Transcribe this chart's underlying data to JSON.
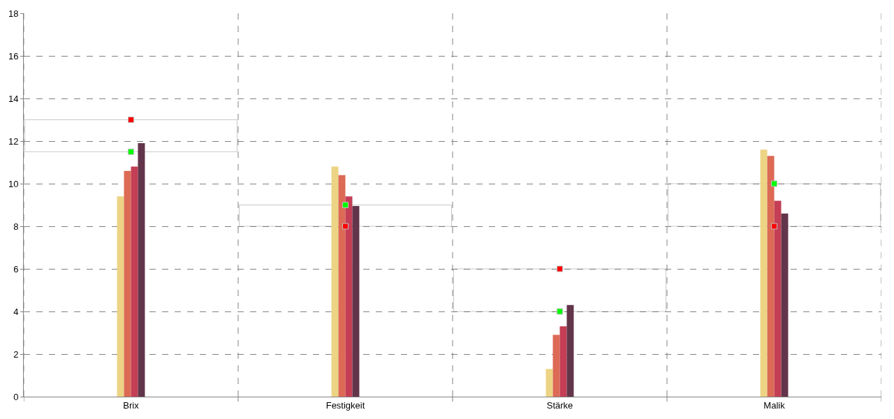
{
  "chart_data": {
    "type": "bar",
    "categories": [
      "Brix",
      "Festigkeit",
      "Stärke",
      "Malik"
    ],
    "series": [
      {
        "color": "#ecd484",
        "values": [
          9.4,
          10.8,
          1.3,
          11.6
        ]
      },
      {
        "color": "#dc6a55",
        "values": [
          10.6,
          10.4,
          2.9,
          11.3
        ]
      },
      {
        "color": "#c43e55",
        "values": [
          10.8,
          9.4,
          3.3,
          9.2
        ]
      },
      {
        "color": "#63354a",
        "values": [
          11.9,
          8.95,
          4.3,
          8.6
        ]
      },
      {
        "type": "scatter",
        "color": "#00ff00",
        "x": [
          "Brix",
          "Festigkeit",
          "Stärke",
          "Malik"
        ],
        "values": [
          11.5,
          9,
          4,
          10
        ]
      },
      {
        "type": "scatter",
        "color": "#ff0000",
        "x": [
          "Brix",
          "Festigkeit",
          "Stärke",
          "Malik"
        ],
        "values": [
          13,
          8,
          6,
          8
        ]
      }
    ],
    "ylim": [
      0,
      18
    ],
    "yticks": [
      0,
      2,
      4,
      6,
      8,
      10,
      12,
      14,
      16,
      18
    ],
    "grid": true,
    "marker": "square"
  }
}
